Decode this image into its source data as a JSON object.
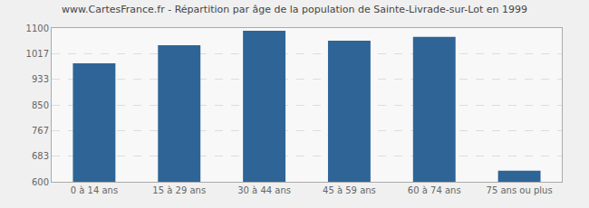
{
  "chart_data": {
    "type": "bar",
    "title": "www.CartesFrance.fr - Répartition par âge de la population de Sainte-Livrade-sur-Lot en 1999",
    "categories": [
      "0 à 14 ans",
      "15 à 29 ans",
      "30 à 44 ans",
      "45 à 59 ans",
      "60 à 74 ans",
      "75 ans ou plus"
    ],
    "values": [
      985,
      1044,
      1091,
      1059,
      1071,
      636
    ],
    "color": "#2e6596",
    "ylim": [
      600,
      1100
    ],
    "yticks": [
      600,
      683,
      767,
      850,
      933,
      1017,
      1100
    ],
    "grid": true
  }
}
